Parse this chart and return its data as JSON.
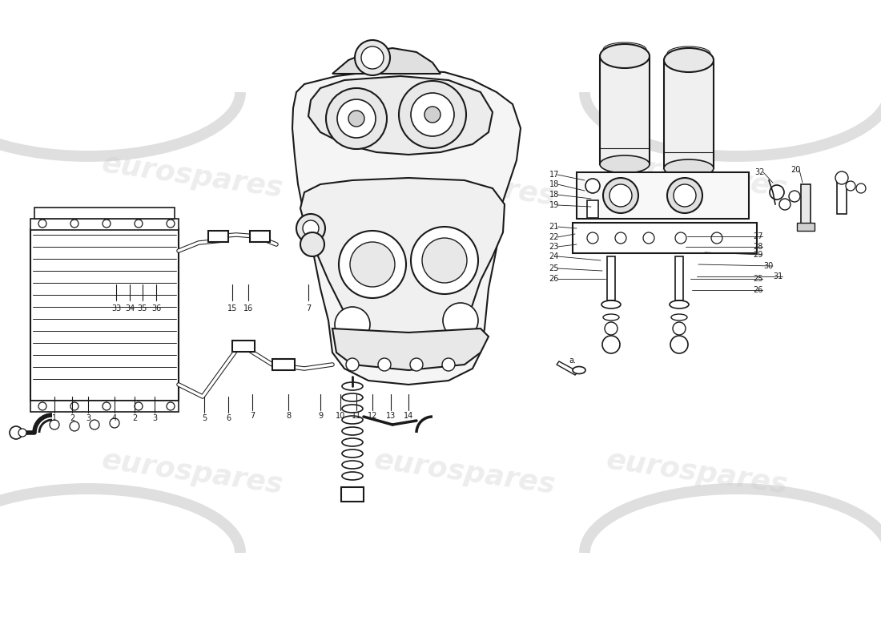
{
  "bg": "#ffffff",
  "lc": "#1a1a1a",
  "watermark": "eurospares",
  "wm_color": "#cccccc",
  "wm_alpha": 0.35
}
